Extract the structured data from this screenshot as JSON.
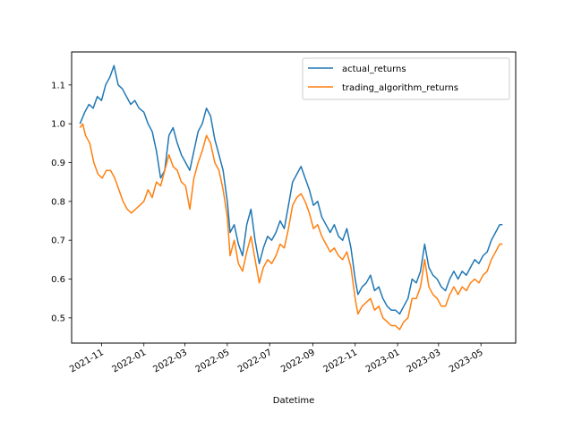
{
  "chart_data": {
    "type": "line",
    "title": "",
    "xlabel": "Datetime",
    "ylabel": "",
    "grid": false,
    "legend_position": "top-right",
    "x_axis_type": "date",
    "xlim": [
      "2021-09-19",
      "2023-06-20"
    ],
    "ylim": [
      0.435,
      1.185
    ],
    "x_ticks": [
      {
        "date": "2021-11-01",
        "label": "2021-11"
      },
      {
        "date": "2022-01-01",
        "label": "2022-01"
      },
      {
        "date": "2022-03-01",
        "label": "2022-03"
      },
      {
        "date": "2022-05-01",
        "label": "2022-05"
      },
      {
        "date": "2022-07-01",
        "label": "2022-07"
      },
      {
        "date": "2022-09-01",
        "label": "2022-09"
      },
      {
        "date": "2022-11-01",
        "label": "2022-11"
      },
      {
        "date": "2023-01-01",
        "label": "2023-01"
      },
      {
        "date": "2023-03-01",
        "label": "2023-03"
      },
      {
        "date": "2023-05-01",
        "label": "2023-05"
      }
    ],
    "y_ticks": [
      {
        "value": 0.5,
        "label": "0.5"
      },
      {
        "value": 0.6,
        "label": "0.6"
      },
      {
        "value": 0.7,
        "label": "0.7"
      },
      {
        "value": 0.8,
        "label": "0.8"
      },
      {
        "value": 0.9,
        "label": "0.9"
      },
      {
        "value": 1.0,
        "label": "1.0"
      },
      {
        "value": 1.1,
        "label": "1.1"
      }
    ],
    "series": [
      {
        "name": "actual_returns",
        "color": "#1f77b4",
        "points": [
          [
            "2021-10-01",
            1.0
          ],
          [
            "2021-10-08",
            1.03
          ],
          [
            "2021-10-14",
            1.05
          ],
          [
            "2021-10-20",
            1.04
          ],
          [
            "2021-10-26",
            1.07
          ],
          [
            "2021-11-01",
            1.06
          ],
          [
            "2021-11-07",
            1.1
          ],
          [
            "2021-11-13",
            1.12
          ],
          [
            "2021-11-19",
            1.15
          ],
          [
            "2021-11-25",
            1.1
          ],
          [
            "2021-12-01",
            1.09
          ],
          [
            "2021-12-07",
            1.07
          ],
          [
            "2021-12-13",
            1.05
          ],
          [
            "2021-12-19",
            1.06
          ],
          [
            "2021-12-25",
            1.04
          ],
          [
            "2022-01-01",
            1.03
          ],
          [
            "2022-01-07",
            1.0
          ],
          [
            "2022-01-13",
            0.98
          ],
          [
            "2022-01-19",
            0.93
          ],
          [
            "2022-01-25",
            0.86
          ],
          [
            "2022-01-31",
            0.88
          ],
          [
            "2022-02-06",
            0.97
          ],
          [
            "2022-02-12",
            0.99
          ],
          [
            "2022-02-18",
            0.95
          ],
          [
            "2022-02-24",
            0.92
          ],
          [
            "2022-03-02",
            0.9
          ],
          [
            "2022-03-08",
            0.88
          ],
          [
            "2022-03-14",
            0.93
          ],
          [
            "2022-03-20",
            0.98
          ],
          [
            "2022-03-26",
            1.0
          ],
          [
            "2022-04-01",
            1.04
          ],
          [
            "2022-04-07",
            1.02
          ],
          [
            "2022-04-13",
            0.96
          ],
          [
            "2022-04-19",
            0.92
          ],
          [
            "2022-04-25",
            0.88
          ],
          [
            "2022-05-01",
            0.8
          ],
          [
            "2022-05-05",
            0.72
          ],
          [
            "2022-05-11",
            0.74
          ],
          [
            "2022-05-17",
            0.69
          ],
          [
            "2022-05-23",
            0.66
          ],
          [
            "2022-05-29",
            0.74
          ],
          [
            "2022-06-04",
            0.78
          ],
          [
            "2022-06-10",
            0.7
          ],
          [
            "2022-06-16",
            0.64
          ],
          [
            "2022-06-22",
            0.68
          ],
          [
            "2022-06-28",
            0.71
          ],
          [
            "2022-07-04",
            0.7
          ],
          [
            "2022-07-10",
            0.72
          ],
          [
            "2022-07-16",
            0.75
          ],
          [
            "2022-07-22",
            0.73
          ],
          [
            "2022-07-28",
            0.79
          ],
          [
            "2022-08-03",
            0.85
          ],
          [
            "2022-08-09",
            0.87
          ],
          [
            "2022-08-15",
            0.89
          ],
          [
            "2022-08-21",
            0.86
          ],
          [
            "2022-08-27",
            0.83
          ],
          [
            "2022-09-02",
            0.79
          ],
          [
            "2022-09-08",
            0.8
          ],
          [
            "2022-09-14",
            0.76
          ],
          [
            "2022-09-20",
            0.74
          ],
          [
            "2022-09-26",
            0.72
          ],
          [
            "2022-10-02",
            0.74
          ],
          [
            "2022-10-08",
            0.71
          ],
          [
            "2022-10-14",
            0.7
          ],
          [
            "2022-10-20",
            0.73
          ],
          [
            "2022-10-26",
            0.68
          ],
          [
            "2022-11-01",
            0.6
          ],
          [
            "2022-11-05",
            0.56
          ],
          [
            "2022-11-11",
            0.58
          ],
          [
            "2022-11-17",
            0.59
          ],
          [
            "2022-11-23",
            0.61
          ],
          [
            "2022-11-29",
            0.57
          ],
          [
            "2022-12-05",
            0.58
          ],
          [
            "2022-12-11",
            0.55
          ],
          [
            "2022-12-17",
            0.53
          ],
          [
            "2022-12-23",
            0.52
          ],
          [
            "2022-12-29",
            0.52
          ],
          [
            "2023-01-04",
            0.51
          ],
          [
            "2023-01-10",
            0.53
          ],
          [
            "2023-01-16",
            0.55
          ],
          [
            "2023-01-22",
            0.6
          ],
          [
            "2023-01-28",
            0.59
          ],
          [
            "2023-02-03",
            0.62
          ],
          [
            "2023-02-09",
            0.69
          ],
          [
            "2023-02-15",
            0.63
          ],
          [
            "2023-02-21",
            0.61
          ],
          [
            "2023-02-27",
            0.6
          ],
          [
            "2023-03-05",
            0.58
          ],
          [
            "2023-03-11",
            0.57
          ],
          [
            "2023-03-17",
            0.6
          ],
          [
            "2023-03-23",
            0.62
          ],
          [
            "2023-03-29",
            0.6
          ],
          [
            "2023-04-04",
            0.62
          ],
          [
            "2023-04-10",
            0.61
          ],
          [
            "2023-04-16",
            0.63
          ],
          [
            "2023-04-22",
            0.65
          ],
          [
            "2023-04-28",
            0.64
          ],
          [
            "2023-05-04",
            0.66
          ],
          [
            "2023-05-10",
            0.67
          ],
          [
            "2023-05-16",
            0.7
          ],
          [
            "2023-05-22",
            0.72
          ],
          [
            "2023-05-28",
            0.74
          ],
          [
            "2023-06-01",
            0.74
          ]
        ]
      },
      {
        "name": "trading_algorithm_returns",
        "color": "#ff7f0e",
        "points": [
          [
            "2021-10-01",
            0.99
          ],
          [
            "2021-10-05",
            1.0
          ],
          [
            "2021-10-09",
            0.97
          ],
          [
            "2021-10-15",
            0.95
          ],
          [
            "2021-10-21",
            0.9
          ],
          [
            "2021-10-27",
            0.87
          ],
          [
            "2021-11-02",
            0.86
          ],
          [
            "2021-11-08",
            0.88
          ],
          [
            "2021-11-14",
            0.88
          ],
          [
            "2021-11-20",
            0.86
          ],
          [
            "2021-11-26",
            0.83
          ],
          [
            "2021-12-02",
            0.8
          ],
          [
            "2021-12-08",
            0.78
          ],
          [
            "2021-12-14",
            0.77
          ],
          [
            "2021-12-20",
            0.78
          ],
          [
            "2021-12-26",
            0.79
          ],
          [
            "2022-01-01",
            0.8
          ],
          [
            "2022-01-07",
            0.83
          ],
          [
            "2022-01-13",
            0.81
          ],
          [
            "2022-01-19",
            0.85
          ],
          [
            "2022-01-25",
            0.84
          ],
          [
            "2022-01-31",
            0.88
          ],
          [
            "2022-02-06",
            0.92
          ],
          [
            "2022-02-12",
            0.89
          ],
          [
            "2022-02-18",
            0.88
          ],
          [
            "2022-02-24",
            0.85
          ],
          [
            "2022-03-02",
            0.84
          ],
          [
            "2022-03-08",
            0.78
          ],
          [
            "2022-03-14",
            0.86
          ],
          [
            "2022-03-20",
            0.9
          ],
          [
            "2022-03-26",
            0.93
          ],
          [
            "2022-04-01",
            0.97
          ],
          [
            "2022-04-07",
            0.95
          ],
          [
            "2022-04-13",
            0.9
          ],
          [
            "2022-04-19",
            0.88
          ],
          [
            "2022-04-25",
            0.83
          ],
          [
            "2022-05-01",
            0.76
          ],
          [
            "2022-05-05",
            0.66
          ],
          [
            "2022-05-11",
            0.7
          ],
          [
            "2022-05-17",
            0.64
          ],
          [
            "2022-05-23",
            0.62
          ],
          [
            "2022-05-29",
            0.67
          ],
          [
            "2022-06-04",
            0.71
          ],
          [
            "2022-06-10",
            0.65
          ],
          [
            "2022-06-16",
            0.59
          ],
          [
            "2022-06-22",
            0.63
          ],
          [
            "2022-06-28",
            0.65
          ],
          [
            "2022-07-04",
            0.64
          ],
          [
            "2022-07-10",
            0.66
          ],
          [
            "2022-07-16",
            0.69
          ],
          [
            "2022-07-22",
            0.68
          ],
          [
            "2022-07-28",
            0.73
          ],
          [
            "2022-08-03",
            0.79
          ],
          [
            "2022-08-09",
            0.81
          ],
          [
            "2022-08-15",
            0.82
          ],
          [
            "2022-08-21",
            0.8
          ],
          [
            "2022-08-27",
            0.77
          ],
          [
            "2022-09-02",
            0.73
          ],
          [
            "2022-09-08",
            0.74
          ],
          [
            "2022-09-14",
            0.71
          ],
          [
            "2022-09-20",
            0.69
          ],
          [
            "2022-09-26",
            0.67
          ],
          [
            "2022-10-02",
            0.68
          ],
          [
            "2022-10-08",
            0.66
          ],
          [
            "2022-10-14",
            0.65
          ],
          [
            "2022-10-20",
            0.67
          ],
          [
            "2022-10-26",
            0.63
          ],
          [
            "2022-11-01",
            0.55
          ],
          [
            "2022-11-05",
            0.51
          ],
          [
            "2022-11-11",
            0.53
          ],
          [
            "2022-11-17",
            0.54
          ],
          [
            "2022-11-23",
            0.55
          ],
          [
            "2022-11-29",
            0.52
          ],
          [
            "2022-12-05",
            0.53
          ],
          [
            "2022-12-11",
            0.5
          ],
          [
            "2022-12-17",
            0.49
          ],
          [
            "2022-12-23",
            0.48
          ],
          [
            "2022-12-29",
            0.48
          ],
          [
            "2023-01-04",
            0.47
          ],
          [
            "2023-01-10",
            0.49
          ],
          [
            "2023-01-16",
            0.5
          ],
          [
            "2023-01-22",
            0.55
          ],
          [
            "2023-01-28",
            0.55
          ],
          [
            "2023-02-03",
            0.58
          ],
          [
            "2023-02-09",
            0.65
          ],
          [
            "2023-02-15",
            0.58
          ],
          [
            "2023-02-21",
            0.56
          ],
          [
            "2023-02-27",
            0.55
          ],
          [
            "2023-03-05",
            0.53
          ],
          [
            "2023-03-11",
            0.53
          ],
          [
            "2023-03-17",
            0.56
          ],
          [
            "2023-03-23",
            0.58
          ],
          [
            "2023-03-29",
            0.56
          ],
          [
            "2023-04-04",
            0.58
          ],
          [
            "2023-04-10",
            0.57
          ],
          [
            "2023-04-16",
            0.59
          ],
          [
            "2023-04-22",
            0.6
          ],
          [
            "2023-04-28",
            0.59
          ],
          [
            "2023-05-04",
            0.61
          ],
          [
            "2023-05-10",
            0.62
          ],
          [
            "2023-05-16",
            0.65
          ],
          [
            "2023-05-22",
            0.67
          ],
          [
            "2023-05-28",
            0.69
          ],
          [
            "2023-06-01",
            0.69
          ]
        ]
      }
    ]
  }
}
